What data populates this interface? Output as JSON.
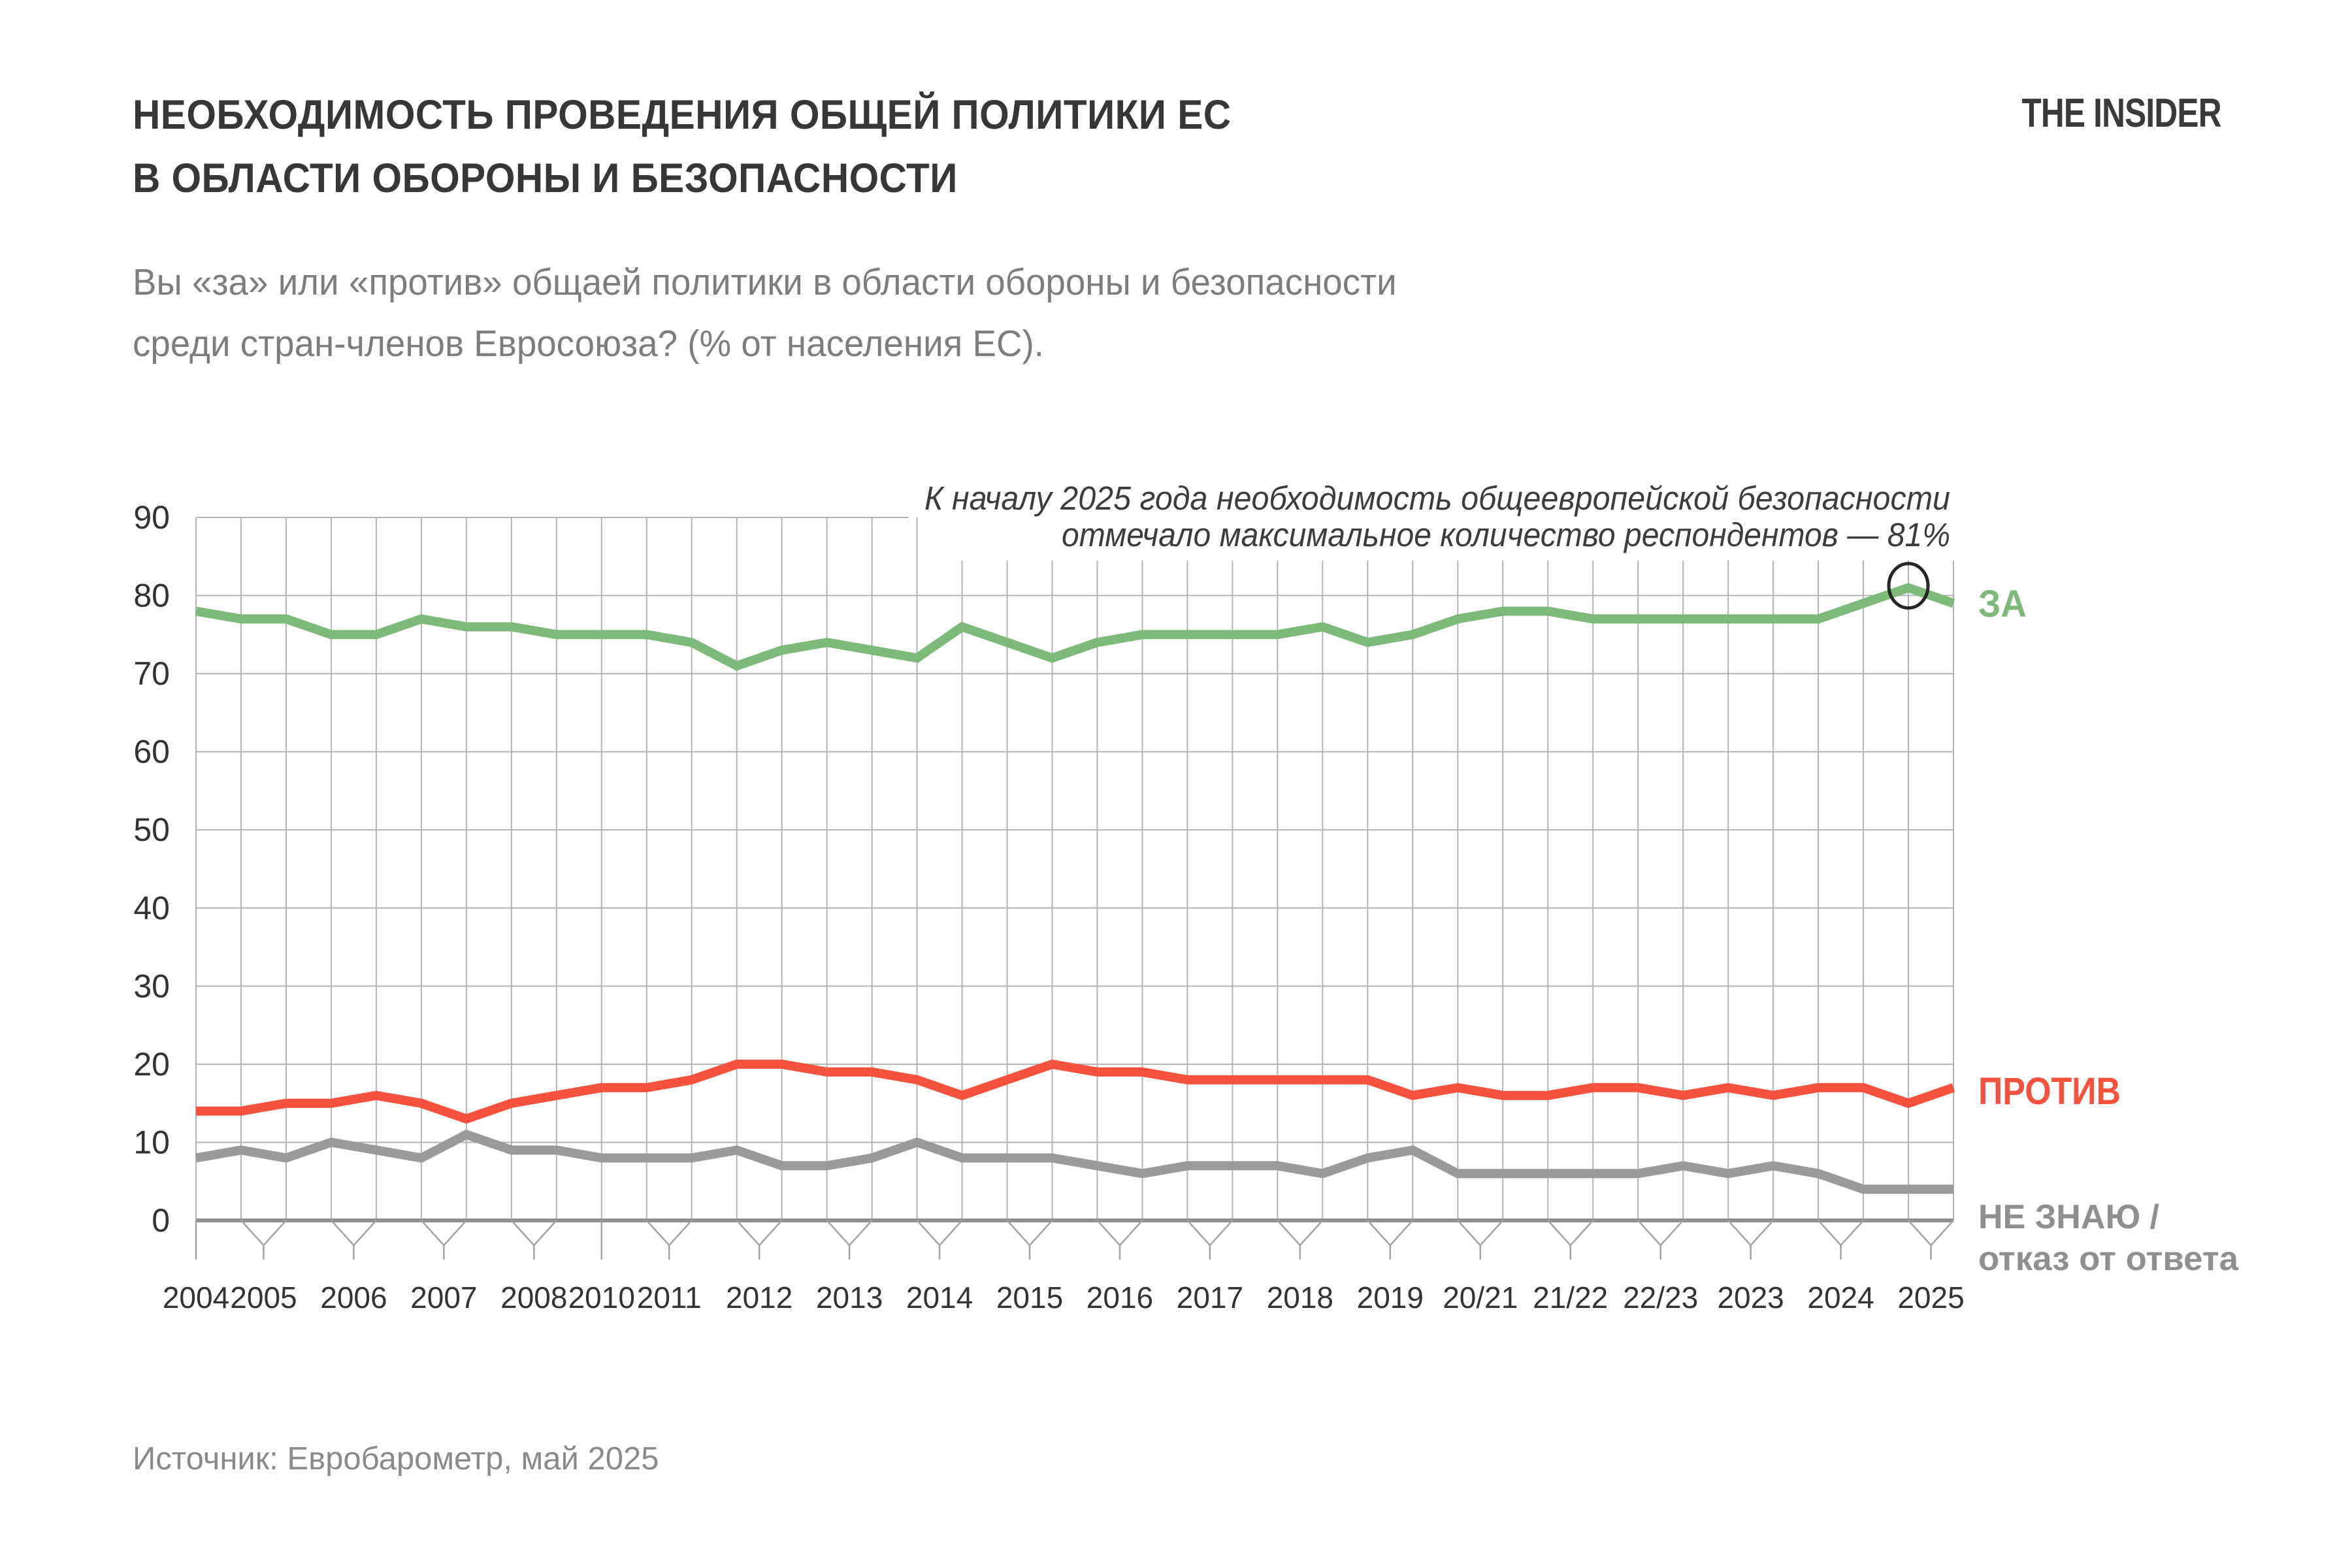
{
  "header": {
    "title_line1": "НЕОБХОДИМОСТЬ ПРОВЕДЕНИЯ ОБЩЕЙ ПОЛИТИКИ ЕС",
    "title_line2": "В ОБЛАСТИ ОБОРОНЫ И БЕЗОПАСНОСТИ",
    "logo": "THE INSIDER"
  },
  "subtitle": {
    "line1": "Вы «за» или «против» общаей политики в области обороны и безопасности",
    "line2": "среди стран-членов Евросоюза? (% от населения ЕС)."
  },
  "annotation": {
    "line1": "К началу 2025 года необходимость общеевропейской безопасности",
    "line2": "отмечало максимальное количество респондентов — 81%"
  },
  "legend": {
    "za": "ЗА",
    "protiv": "ПРОТИВ",
    "dk_line1": "НЕ ЗНАЮ /",
    "dk_line2": "отказ от ответа"
  },
  "source": "Источник: Евробарометр, май 2025",
  "colors": {
    "green": "#7dba79",
    "red": "#f5523e",
    "gray_line": "#9a9a9a",
    "legend_gray": "#8f8f8f",
    "gridline": "#b3b3b3",
    "axis": "#909090",
    "tick": "#a3a3a3",
    "axis_text": "#333333",
    "highlight_circle": "#262626"
  },
  "chart_data": {
    "type": "line",
    "title": "НЕОБХОДИМОСТЬ ПРОВЕДЕНИЯ ОБЩЕЙ ПОЛИТИКИ ЕС В ОБЛАСТИ ОБОРОНЫ И БЕЗОПАСНОСТИ",
    "question": "Вы «за» или «против» общаей политики в области обороны и безопасности среди стран-членов Евросоюза? (% от населения ЕС).",
    "unit": "% от населения ЕС",
    "grid": true,
    "legend_position": "right",
    "ylim": [
      0,
      90
    ],
    "y_ticks": [
      0,
      10,
      20,
      30,
      40,
      50,
      60,
      70,
      80,
      90
    ],
    "x_axis": [
      {
        "label": "2004",
        "points": [
          0
        ]
      },
      {
        "label": "2005",
        "points": [
          1,
          2
        ]
      },
      {
        "label": "2006",
        "points": [
          3,
          4
        ]
      },
      {
        "label": "2007",
        "points": [
          5,
          6
        ]
      },
      {
        "label": "2008",
        "points": [
          7,
          8
        ]
      },
      {
        "label": "2010",
        "points": [
          9
        ]
      },
      {
        "label": "2011",
        "points": [
          10,
          11
        ]
      },
      {
        "label": "2012",
        "points": [
          12,
          13
        ]
      },
      {
        "label": "2013",
        "points": [
          14,
          15
        ]
      },
      {
        "label": "2014",
        "points": [
          16,
          17
        ]
      },
      {
        "label": "2015",
        "points": [
          18,
          19
        ]
      },
      {
        "label": "2016",
        "points": [
          20,
          21
        ]
      },
      {
        "label": "2017",
        "points": [
          22,
          23
        ]
      },
      {
        "label": "2018",
        "points": [
          24,
          25
        ]
      },
      {
        "label": "2019",
        "points": [
          26,
          27
        ]
      },
      {
        "label": "20/21",
        "points": [
          28,
          29
        ]
      },
      {
        "label": "21/22",
        "points": [
          30,
          31
        ]
      },
      {
        "label": "22/23",
        "points": [
          32,
          33
        ]
      },
      {
        "label": "2023",
        "points": [
          34,
          35
        ]
      },
      {
        "label": "2024",
        "points": [
          36,
          37
        ]
      },
      {
        "label": "2025",
        "points": [
          38,
          39
        ]
      }
    ],
    "series": [
      {
        "name": "ЗА",
        "color": "#7dba79",
        "values": [
          78,
          77,
          77,
          75,
          75,
          77,
          76,
          76,
          75,
          75,
          75,
          74,
          71,
          73,
          74,
          73,
          72,
          76,
          74,
          72,
          74,
          75,
          75,
          75,
          75,
          76,
          74,
          75,
          77,
          78,
          78,
          77,
          77,
          77,
          77,
          77,
          77,
          79,
          81,
          79
        ]
      },
      {
        "name": "ПРОТИВ",
        "color": "#f5523e",
        "values": [
          14,
          14,
          15,
          15,
          16,
          15,
          13,
          15,
          16,
          17,
          17,
          18,
          20,
          20,
          19,
          19,
          18,
          16,
          18,
          20,
          19,
          19,
          18,
          18,
          18,
          18,
          18,
          16,
          17,
          16,
          16,
          17,
          17,
          16,
          17,
          16,
          17,
          17,
          15,
          17
        ]
      },
      {
        "name": "НЕ ЗНАЮ / отказ от ответа",
        "color": "#9a9a9a",
        "values": [
          8,
          9,
          8,
          10,
          9,
          8,
          11,
          9,
          9,
          8,
          8,
          8,
          9,
          7,
          7,
          8,
          10,
          8,
          8,
          8,
          7,
          6,
          7,
          7,
          7,
          6,
          8,
          9,
          6,
          6,
          6,
          6,
          6,
          7,
          6,
          7,
          6,
          4,
          4,
          4
        ]
      }
    ],
    "highlight": {
      "series_index": 0,
      "point_index": 38,
      "value": 81
    }
  }
}
